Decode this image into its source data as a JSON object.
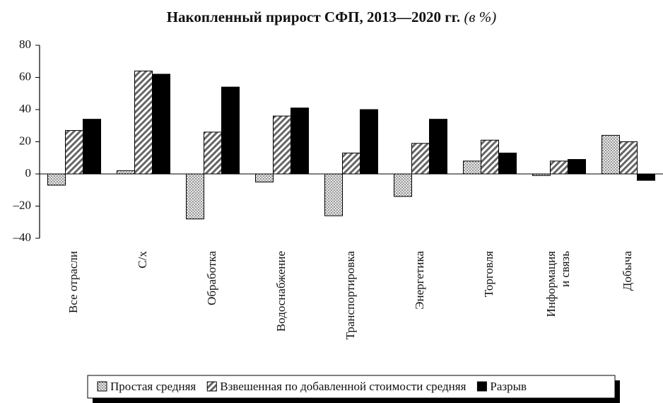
{
  "chart_data": {
    "type": "bar",
    "title": "Накопленный прирост СФП, 2013—2020 гг.",
    "title_unit": "(в %)",
    "categories": [
      "Все отрасли",
      "С/х",
      "Обработка",
      "Водоснабжение",
      "Транспортировка",
      "Энергетика",
      "Торговля",
      "Информация и связь",
      "Добыча"
    ],
    "series": [
      {
        "name": "Простая средняя",
        "color": "#000000",
        "pattern": "dots",
        "values": [
          -7,
          2,
          -28,
          -5,
          -26,
          -14,
          8,
          -1,
          24
        ]
      },
      {
        "name": "Взвешенная по добавленной стоимости средняя",
        "color": "#000000",
        "pattern": "hatch",
        "values": [
          27,
          64,
          26,
          36,
          13,
          19,
          21,
          8,
          20
        ]
      },
      {
        "name": "Разрыв",
        "color": "#000000",
        "pattern": "solid",
        "values": [
          34,
          62,
          54,
          41,
          40,
          34,
          13,
          9,
          -4
        ]
      }
    ],
    "ylim": [
      -40,
      80
    ],
    "yticks": [
      {
        "value": -40,
        "label": "–40"
      },
      {
        "value": -20,
        "label": "–20"
      },
      0,
      20,
      40,
      60,
      80
    ],
    "grid": false,
    "legend": "bottom"
  }
}
